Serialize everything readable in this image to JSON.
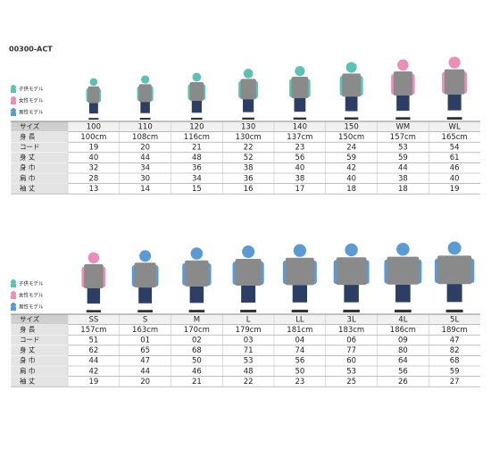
{
  "header": {
    "code": "00300-ACT"
  },
  "legend": {
    "labels": [
      "子供モデル",
      "女性モデル",
      "男性モデル"
    ],
    "colors": [
      "#5cc2b4",
      "#ec8fb8",
      "#5b9bd5"
    ]
  },
  "tables": [
    {
      "column_colors": [
        "#2aa99a",
        "#2aa99a",
        "#2aa99a",
        "#2aa99a",
        "#2aa99a",
        "#2aa99a",
        "#d9468a",
        "#d9468a"
      ],
      "figure_colors": [
        "#5cc2b4",
        "#5cc2b4",
        "#5cc2b4",
        "#5cc2b4",
        "#5cc2b4",
        "#5cc2b4",
        "#ec8fb8",
        "#ec8fb8"
      ],
      "rows": [
        [
          "サイズ",
          "100",
          "110",
          "120",
          "130",
          "140",
          "150",
          "WM",
          "WL"
        ],
        [
          "身 長",
          "100cm",
          "108cm",
          "116cm",
          "130cm",
          "137cm",
          "150cm",
          "157cm",
          "165cm"
        ],
        [
          "コード",
          "19",
          "20",
          "21",
          "22",
          "23",
          "24",
          "53",
          "54"
        ],
        [
          "身 丈",
          "40",
          "44",
          "48",
          "52",
          "56",
          "59",
          "59",
          "61"
        ],
        [
          "身 巾",
          "32",
          "34",
          "36",
          "38",
          "40",
          "42",
          "44",
          "46"
        ],
        [
          "肩 巾",
          "28",
          "30",
          "34",
          "36",
          "38",
          "40",
          "38",
          "40"
        ],
        [
          "袖 丈",
          "13",
          "14",
          "15",
          "16",
          "17",
          "18",
          "18",
          "19"
        ]
      ]
    },
    {
      "column_colors": [
        "#d9468a",
        "#2f7fc8",
        "#2f7fc8",
        "#2f7fc8",
        "#2f7fc8",
        "#2f7fc8",
        "#2f7fc8",
        "#2f7fc8"
      ],
      "figure_colors": [
        "#ec8fb8",
        "#5b9bd5",
        "#5b9bd5",
        "#5b9bd5",
        "#5b9bd5",
        "#5b9bd5",
        "#5b9bd5",
        "#5b9bd5"
      ],
      "rows": [
        [
          "サイズ",
          "SS",
          "S",
          "M",
          "L",
          "LL",
          "3L",
          "4L",
          "5L"
        ],
        [
          "身 長",
          "157cm",
          "163cm",
          "170cm",
          "179cm",
          "181cm",
          "183cm",
          "186cm",
          "189cm"
        ],
        [
          "コード",
          "51",
          "01",
          "02",
          "03",
          "04",
          "06",
          "09",
          "47"
        ],
        [
          "身 丈",
          "62",
          "65",
          "68",
          "71",
          "74",
          "77",
          "80",
          "82"
        ],
        [
          "身 巾",
          "44",
          "47",
          "50",
          "53",
          "56",
          "60",
          "64",
          "68"
        ],
        [
          "肩 巾",
          "42",
          "44",
          "46",
          "48",
          "50",
          "53",
          "56",
          "59"
        ],
        [
          "袖 丈",
          "19",
          "20",
          "21",
          "22",
          "23",
          "25",
          "26",
          "27"
        ]
      ]
    }
  ]
}
